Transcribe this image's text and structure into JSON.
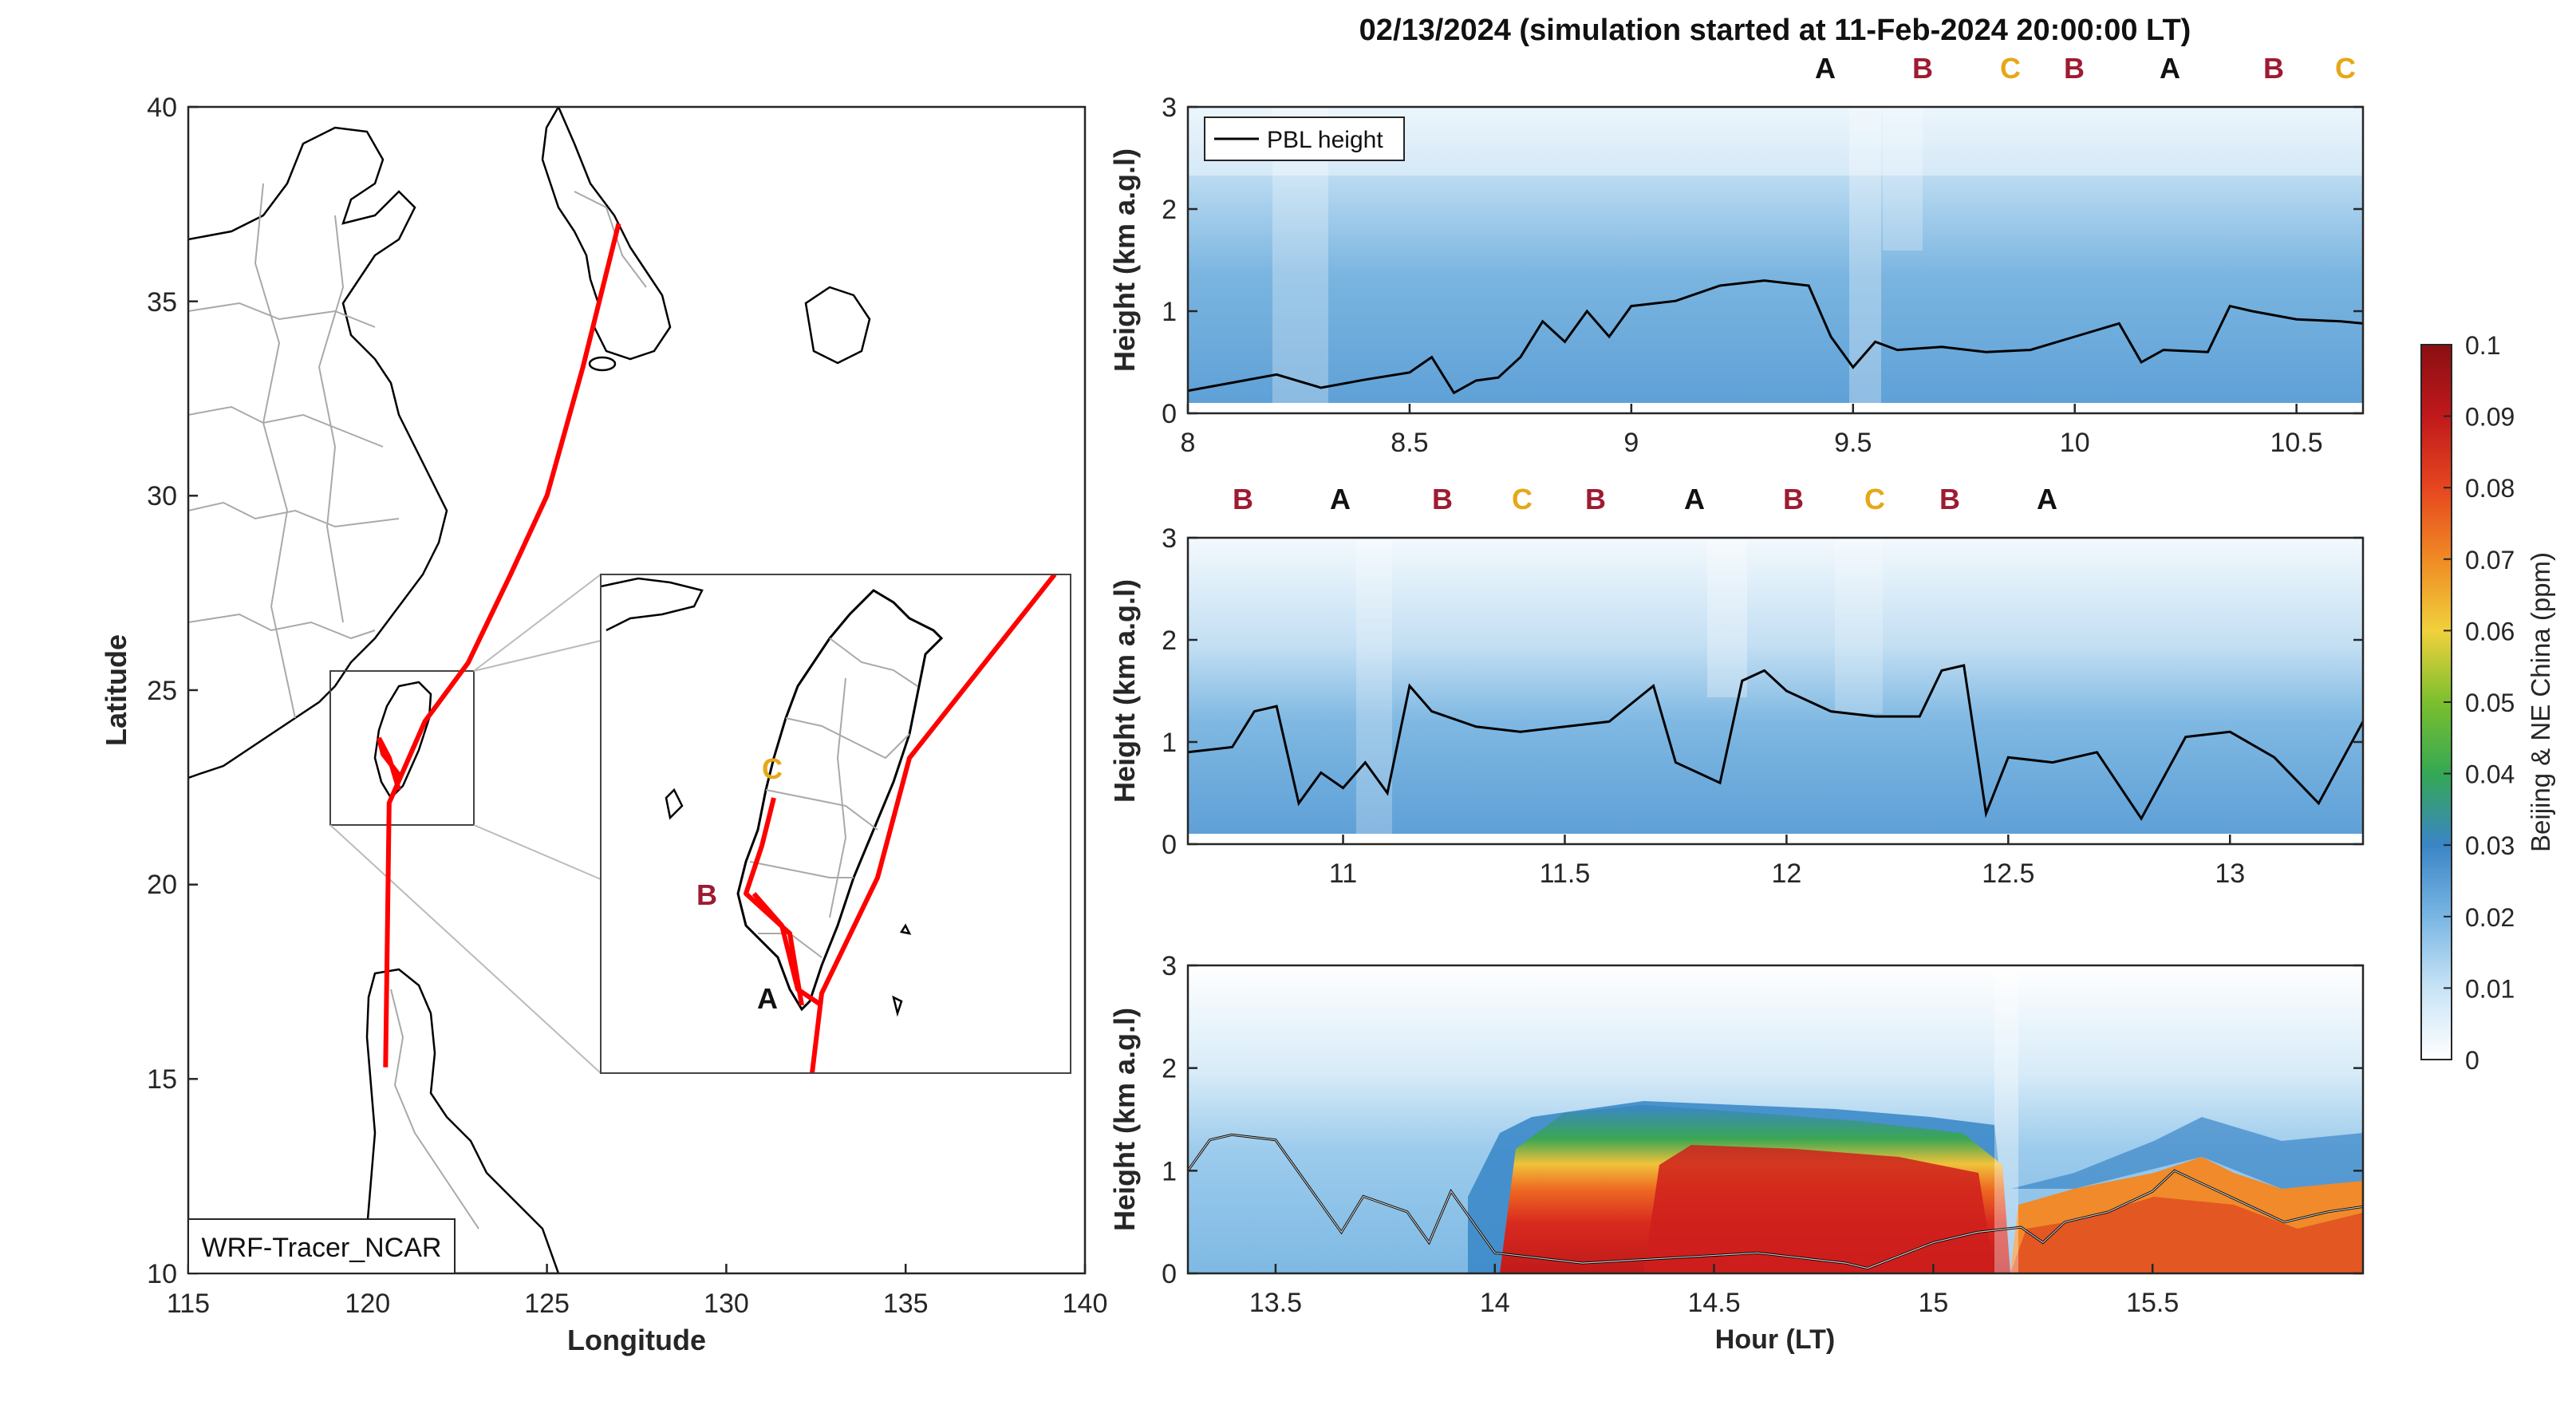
{
  "title": "02/13/2024 (simulation started at 11-Feb-2024 20:00:00 LT)",
  "colors": {
    "A": "#111111",
    "B": "#9e1b32",
    "C": "#e6a817",
    "track": "#ff0000",
    "pbl": "#000000"
  },
  "map": {
    "xlabel": "Longitude",
    "ylabel": "Latitude",
    "xticks": [
      "115",
      "120",
      "125",
      "130",
      "135",
      "140"
    ],
    "yticks": [
      "10",
      "15",
      "20",
      "25",
      "30",
      "35",
      "40"
    ],
    "model_label": "WRF-Tracer_NCAR",
    "inset_labels": {
      "A": "A",
      "B": "B",
      "C": "C"
    },
    "track": [
      [
        127.0,
        37.0
      ],
      [
        126.0,
        33.3
      ],
      [
        125.0,
        30.0
      ],
      [
        124.0,
        28.0
      ],
      [
        122.8,
        25.7
      ],
      [
        121.6,
        24.2
      ],
      [
        120.6,
        22.1
      ],
      [
        120.5,
        15.3
      ]
    ]
  },
  "colorbar": {
    "label": "Beijing & NE China (ppm)",
    "ticks": [
      "0",
      "0.01",
      "0.02",
      "0.03",
      "0.04",
      "0.05",
      "0.06",
      "0.07",
      "0.08",
      "0.09",
      "0.1"
    ],
    "range": [
      0,
      0.1
    ]
  },
  "chart_data": [
    {
      "type": "heatmap",
      "ylabel": "Height (km a.g.l)",
      "xlim": [
        8,
        10.65
      ],
      "ylim": [
        0,
        3
      ],
      "xticks": [
        "8",
        "8.5",
        "9",
        "9.5",
        "10",
        "10.5"
      ],
      "yticks": [
        "0",
        "1",
        "2",
        "3"
      ],
      "legend": "PBL height",
      "legend_position": "top-left",
      "markers": [
        "A",
        "B",
        "C",
        "B",
        "A",
        "B",
        "C"
      ],
      "pbl": {
        "x": [
          8.0,
          8.1,
          8.2,
          8.3,
          8.4,
          8.5,
          8.55,
          8.6,
          8.65,
          8.7,
          8.75,
          8.8,
          8.85,
          8.9,
          8.95,
          9.0,
          9.1,
          9.2,
          9.3,
          9.4,
          9.45,
          9.5,
          9.55,
          9.6,
          9.7,
          9.8,
          9.9,
          10.0,
          10.1,
          10.15,
          10.2,
          10.3,
          10.35,
          10.4,
          10.5,
          10.6,
          10.65
        ],
        "y": [
          0.22,
          0.3,
          0.38,
          0.25,
          0.33,
          0.4,
          0.55,
          0.2,
          0.32,
          0.35,
          0.55,
          0.9,
          0.7,
          1.0,
          0.75,
          1.05,
          1.1,
          1.25,
          1.3,
          1.25,
          0.75,
          0.45,
          0.7,
          0.62,
          0.65,
          0.6,
          0.62,
          0.75,
          0.88,
          0.5,
          0.62,
          0.6,
          1.05,
          1.0,
          0.92,
          0.9,
          0.88
        ]
      }
    },
    {
      "type": "heatmap",
      "ylabel": "Height (km a.g.l)",
      "xlim": [
        10.65,
        13.3
      ],
      "ylim": [
        0,
        3
      ],
      "xticks": [
        "11",
        "11.5",
        "12",
        "12.5",
        "13"
      ],
      "yticks": [
        "0",
        "1",
        "2",
        "3"
      ],
      "markers": [
        "B",
        "A",
        "B",
        "C",
        "B",
        "A",
        "B",
        "C",
        "B",
        "A"
      ],
      "pbl": {
        "x": [
          10.65,
          10.75,
          10.8,
          10.85,
          10.9,
          10.95,
          11.0,
          11.05,
          11.1,
          11.15,
          11.2,
          11.3,
          11.4,
          11.5,
          11.6,
          11.7,
          11.75,
          11.8,
          11.85,
          11.9,
          11.95,
          12.0,
          12.1,
          12.2,
          12.3,
          12.35,
          12.4,
          12.45,
          12.5,
          12.6,
          12.7,
          12.8,
          12.9,
          13.0,
          13.1,
          13.2,
          13.3
        ],
        "y": [
          0.9,
          0.95,
          1.3,
          1.35,
          0.4,
          0.7,
          0.55,
          0.8,
          0.5,
          1.55,
          1.3,
          1.15,
          1.1,
          1.15,
          1.2,
          1.55,
          0.8,
          0.7,
          0.6,
          1.6,
          1.7,
          1.5,
          1.3,
          1.25,
          1.25,
          1.7,
          1.75,
          0.3,
          0.85,
          0.8,
          0.9,
          0.25,
          1.05,
          1.1,
          0.85,
          0.4,
          1.2
        ]
      }
    },
    {
      "type": "heatmap",
      "ylabel": "Height (km a.g.l)",
      "xlabel": "Hour (LT)",
      "xlim": [
        13.3,
        15.98
      ],
      "ylim": [
        0,
        3
      ],
      "xticks": [
        "13.5",
        "14",
        "14.5",
        "15",
        "15.5"
      ],
      "yticks": [
        "0",
        "1",
        "2",
        "3"
      ],
      "pbl": {
        "x": [
          13.3,
          13.35,
          13.4,
          13.5,
          13.55,
          13.6,
          13.65,
          13.7,
          13.8,
          13.85,
          13.9,
          14.0,
          14.2,
          14.4,
          14.6,
          14.8,
          14.85,
          15.0,
          15.1,
          15.2,
          15.25,
          15.3,
          15.4,
          15.5,
          15.55,
          15.6,
          15.7,
          15.8,
          15.9,
          15.98
        ],
        "y": [
          1.0,
          1.3,
          1.35,
          1.3,
          1.0,
          0.7,
          0.4,
          0.75,
          0.6,
          0.3,
          0.8,
          0.2,
          0.1,
          0.15,
          0.2,
          0.1,
          0.05,
          0.3,
          0.4,
          0.45,
          0.3,
          0.5,
          0.6,
          0.8,
          1.0,
          0.9,
          0.7,
          0.5,
          0.6,
          0.65
        ]
      }
    }
  ]
}
